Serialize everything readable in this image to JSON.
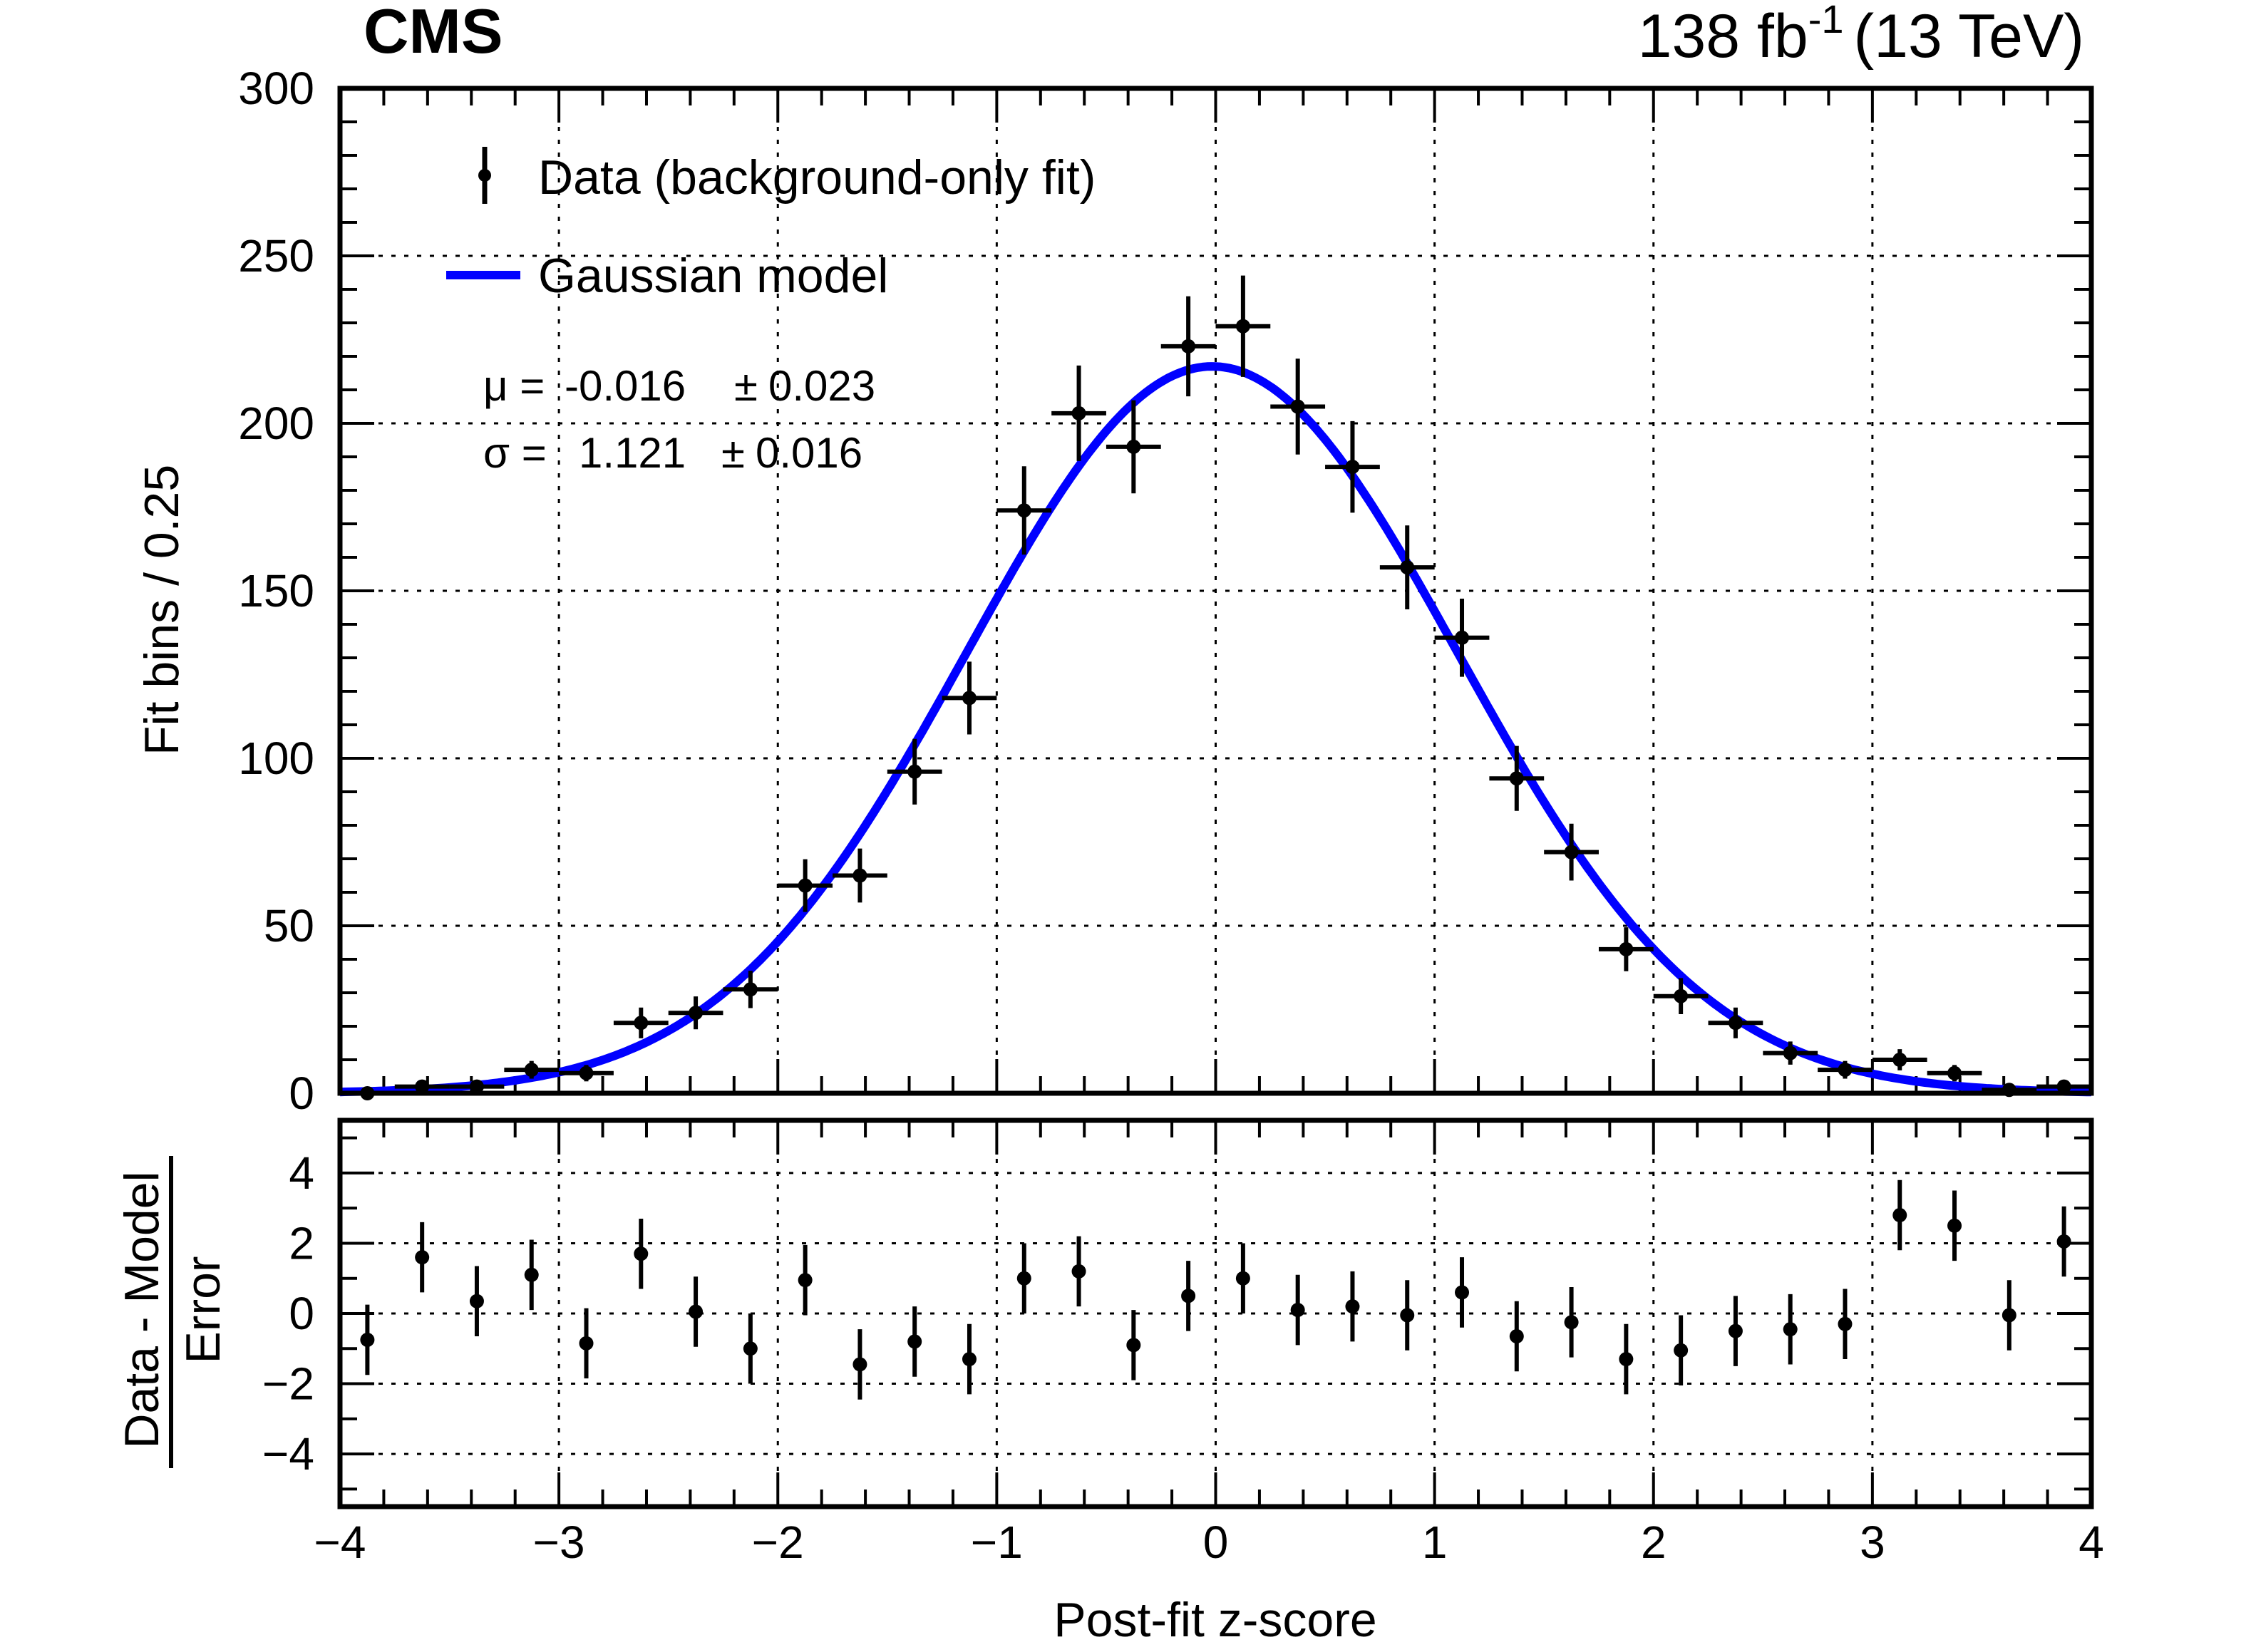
{
  "chart_data": {
    "type": "scatter",
    "experiment_label": "CMS",
    "lumi_label": {
      "value": "138 fb",
      "superscript": "-1",
      "energy": "(13 TeV)"
    },
    "xlabel": "Post-fit z-score",
    "xlim": [
      -4,
      4
    ],
    "x_ticks": [
      -4,
      -3,
      -2,
      -1,
      0,
      1,
      2,
      3,
      4
    ],
    "x_tick_labels": [
      "−4",
      "−3",
      "−2",
      "−1",
      "0",
      "1",
      "2",
      "3",
      "4"
    ],
    "main_panel": {
      "ylabel": "Fit bins / 0.25",
      "ylim": [
        0,
        300
      ],
      "y_ticks": [
        0,
        50,
        100,
        150,
        200,
        250,
        300
      ],
      "y_tick_labels": [
        "0",
        "50",
        "100",
        "150",
        "200",
        "250",
        "300"
      ],
      "bin_width": 0.25,
      "legend": {
        "placement": "top-left",
        "entries": [
          {
            "label": "Data (background-only fit)",
            "marker": "point-with-error"
          },
          {
            "label": "Gaussian model",
            "marker": "line",
            "color": "#0000ff"
          }
        ]
      },
      "fit_results": [
        {
          "symbol": "μ =",
          "value": "-0.016",
          "pm": "±",
          "error": "0.023"
        },
        {
          "symbol": "σ =",
          "value": "1.121",
          "pm": "±",
          "error": "0.016"
        }
      ],
      "gaussian_model": {
        "mu": -0.016,
        "sigma": 1.121,
        "peak": 217,
        "color": "#0000ff"
      },
      "series": [
        {
          "name": "Data (background-only fit)",
          "x": [
            -3.875,
            -3.625,
            -3.375,
            -3.125,
            -2.875,
            -2.625,
            -2.375,
            -2.125,
            -1.875,
            -1.625,
            -1.375,
            -1.125,
            -0.875,
            -0.625,
            -0.375,
            -0.125,
            0.125,
            0.375,
            0.625,
            0.875,
            1.125,
            1.375,
            1.625,
            1.875,
            2.125,
            2.375,
            2.625,
            2.875,
            3.125,
            3.375,
            3.625,
            3.875
          ],
          "y": [
            0,
            2,
            2,
            7,
            6,
            21,
            24,
            31,
            62,
            65,
            96,
            118,
            174,
            203,
            193,
            223,
            229,
            205,
            187,
            157,
            136,
            94,
            72,
            43,
            29,
            21,
            12,
            7,
            10,
            6,
            1,
            2
          ]
        }
      ]
    },
    "ratio_panel": {
      "ylabel_numerator": "Data - Model",
      "ylabel_denominator": "Error",
      "ylim": [
        -5.5,
        5.5
      ],
      "y_ticks": [
        -4,
        -2,
        0,
        2,
        4
      ],
      "y_tick_labels": [
        "−4",
        "−2",
        "0",
        "2",
        "4"
      ],
      "series": [
        {
          "name": "Data - Model / Error",
          "x": [
            -3.875,
            -3.625,
            -3.375,
            -3.125,
            -2.875,
            -2.625,
            -2.375,
            -2.125,
            -1.875,
            -1.625,
            -1.375,
            -1.125,
            -0.875,
            -0.625,
            -0.375,
            -0.125,
            0.125,
            0.375,
            0.625,
            0.875,
            1.125,
            1.375,
            1.625,
            1.875,
            2.125,
            2.375,
            2.625,
            2.875,
            3.125,
            3.375,
            3.625,
            3.875
          ],
          "y": [
            -0.75,
            1.6,
            0.35,
            1.1,
            -0.85,
            1.7,
            0.05,
            -1.0,
            0.95,
            -1.45,
            -0.8,
            -1.3,
            1.0,
            1.2,
            -0.9,
            0.5,
            1.0,
            0.1,
            0.2,
            -0.05,
            0.6,
            -0.65,
            -0.25,
            -1.3,
            -1.05,
            -0.5,
            -0.45,
            -0.3,
            2.8,
            2.5,
            -0.05,
            2.05
          ]
        }
      ]
    }
  }
}
